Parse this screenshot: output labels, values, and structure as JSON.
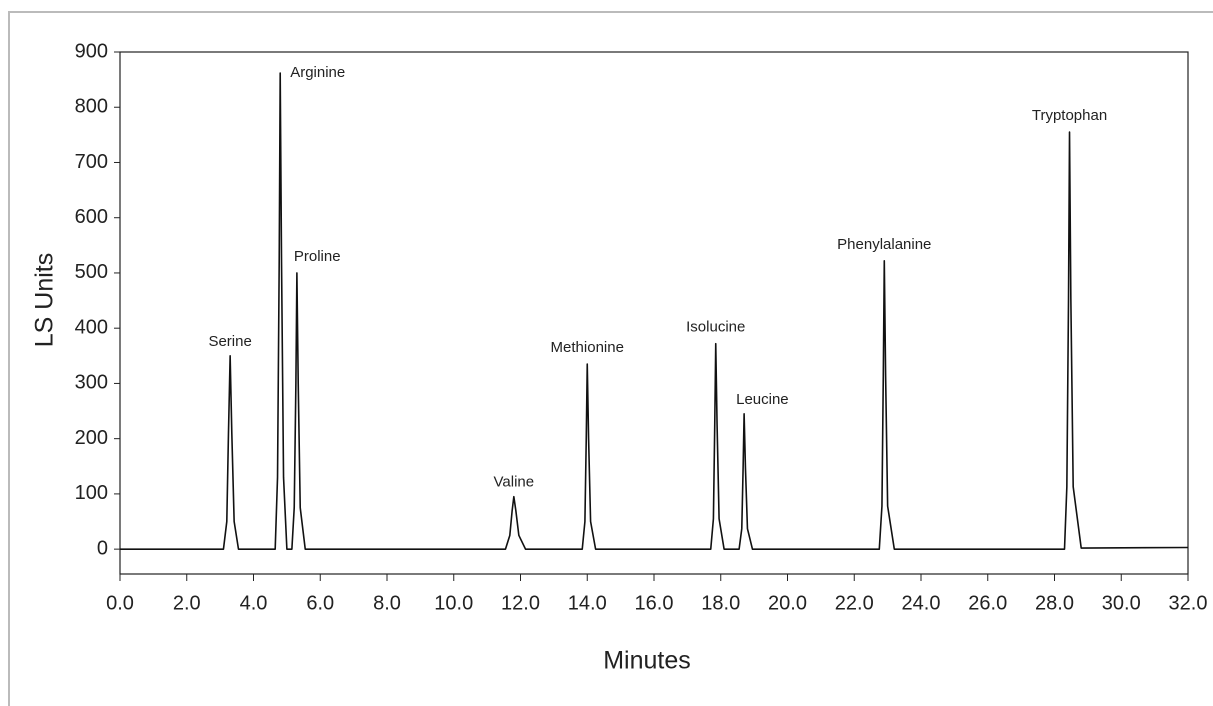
{
  "chart_data": {
    "type": "line",
    "xlabel": "Minutes",
    "ylabel": "LS Units",
    "x": [
      0,
      3.1,
      3.2,
      3.25,
      3.3,
      3.35,
      3.42,
      3.55,
      4.65,
      4.72,
      4.77,
      4.8,
      4.84,
      4.9,
      5.0,
      5.15,
      5.22,
      5.27,
      5.3,
      5.34,
      5.4,
      5.55,
      11.55,
      11.68,
      11.75,
      11.8,
      11.86,
      11.95,
      12.15,
      13.85,
      13.93,
      13.97,
      14.0,
      14.04,
      14.1,
      14.25,
      17.7,
      17.78,
      17.82,
      17.85,
      17.89,
      17.95,
      18.1,
      18.55,
      18.63,
      18.67,
      18.7,
      18.74,
      18.8,
      18.95,
      22.75,
      22.83,
      22.87,
      22.9,
      22.94,
      23.0,
      23.2,
      28.3,
      28.37,
      28.42,
      28.45,
      28.49,
      28.56,
      28.8,
      32
    ],
    "series": [
      {
        "color": "#111111",
        "values": [
          0,
          0,
          50,
          210,
          350,
          210,
          50,
          0,
          0,
          130,
          520,
          862,
          520,
          130,
          0,
          0,
          75,
          300,
          500,
          300,
          75,
          0,
          0,
          25,
          70,
          95,
          70,
          25,
          0,
          0,
          50,
          200,
          335,
          200,
          50,
          0,
          0,
          55,
          225,
          372,
          225,
          55,
          0,
          0,
          37,
          147,
          245,
          147,
          37,
          0,
          0,
          78,
          313,
          522,
          313,
          78,
          0,
          0,
          113,
          453,
          755,
          453,
          113,
          2,
          3
        ]
      }
    ],
    "annotations": [
      {
        "text": "Serine",
        "x": 3.3,
        "y": 350
      },
      {
        "text": "Arginine",
        "x": 4.8,
        "y": 862
      },
      {
        "text": "Proline",
        "x": 5.3,
        "y": 500
      },
      {
        "text": "Valine",
        "x": 11.8,
        "y": 95
      },
      {
        "text": "Methionine",
        "x": 14.0,
        "y": 335
      },
      {
        "text": "Isolucine",
        "x": 17.85,
        "y": 372
      },
      {
        "text": "Leucine",
        "x": 18.7,
        "y": 245
      },
      {
        "text": "Phenylalanine",
        "x": 22.9,
        "y": 522
      },
      {
        "text": "Tryptophan",
        "x": 28.45,
        "y": 755
      }
    ],
    "xlim": [
      0,
      32
    ],
    "xticks": [
      {
        "value": 0,
        "label": "0.0"
      },
      {
        "value": 2,
        "label": "2.0"
      },
      {
        "value": 4,
        "label": "4.0"
      },
      {
        "value": 6,
        "label": "6.0"
      },
      {
        "value": 8,
        "label": "8.0"
      },
      {
        "value": 10,
        "label": "10.0"
      },
      {
        "value": 12,
        "label": "12.0"
      },
      {
        "value": 14,
        "label": "14.0"
      },
      {
        "value": 16,
        "label": "16.0"
      },
      {
        "value": 18,
        "label": "18.0"
      },
      {
        "value": 20,
        "label": "20.0"
      },
      {
        "value": 22,
        "label": "22.0"
      },
      {
        "value": 24,
        "label": "24.0"
      },
      {
        "value": 26,
        "label": "26.0"
      },
      {
        "value": 28,
        "label": "28.0"
      },
      {
        "value": 30,
        "label": "30.0"
      },
      {
        "value": 32,
        "label": "32.0"
      }
    ],
    "ylim": [
      -45,
      900
    ],
    "yticks": [
      0,
      100,
      200,
      300,
      400,
      500,
      600,
      700,
      800,
      900
    ],
    "grid": false
  }
}
